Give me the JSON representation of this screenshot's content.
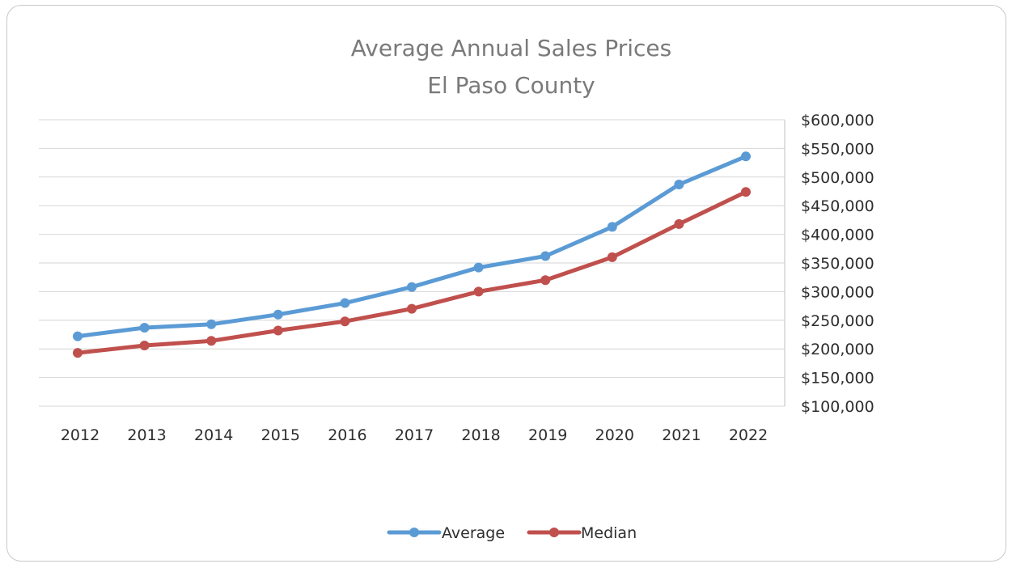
{
  "chart_data": {
    "type": "line",
    "title": "Average Annual Sales Prices",
    "subtitle": "El Paso County",
    "xlabel": "",
    "ylabel": "",
    "categories": [
      "2012",
      "2013",
      "2014",
      "2015",
      "2016",
      "2017",
      "2018",
      "2019",
      "2020",
      "2021",
      "2022"
    ],
    "series": [
      {
        "name": "Average",
        "color": "#5b9bd5",
        "values": [
          222000,
          237000,
          243000,
          260000,
          280000,
          308000,
          342000,
          362000,
          413000,
          487000,
          536000
        ]
      },
      {
        "name": "Median",
        "color": "#c0504d",
        "values": [
          193000,
          206000,
          214000,
          232000,
          248000,
          270000,
          300000,
          320000,
          360000,
          418000,
          474000
        ]
      }
    ],
    "ylim": [
      100000,
      600000
    ],
    "y_ticks": [
      100000,
      150000,
      200000,
      250000,
      300000,
      350000,
      400000,
      450000,
      500000,
      550000,
      600000
    ],
    "y_tick_labels": [
      "$100,000",
      "$150,000",
      "$200,000",
      "$250,000",
      "$300,000",
      "$350,000",
      "$400,000",
      "$450,000",
      "$500,000",
      "$550,000",
      "$600,000"
    ],
    "y_axis_side": "right",
    "grid": true,
    "legend_position": "bottom"
  }
}
